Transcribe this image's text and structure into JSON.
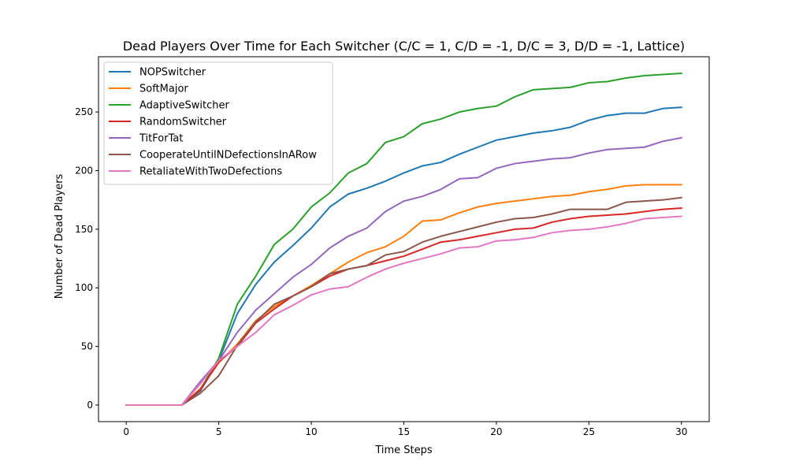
{
  "chart_data": {
    "type": "line",
    "title": "Dead Players Over Time for Each Switcher (C/C = 1, C/D = -1, D/C = 3, D/D = -1, Lattice)",
    "xlabel": "Time Steps",
    "ylabel": "Number of Dead Players",
    "xlim": [
      -1.5,
      31.5
    ],
    "ylim": [
      -14.15,
      297.15
    ],
    "xticks": [
      0,
      5,
      10,
      15,
      20,
      25,
      30
    ],
    "yticks": [
      0,
      50,
      100,
      150,
      200,
      250
    ],
    "grid": false,
    "legend_position": "upper-left",
    "x": [
      0,
      1,
      2,
      3,
      4,
      5,
      6,
      7,
      8,
      9,
      10,
      11,
      12,
      13,
      14,
      15,
      16,
      17,
      18,
      19,
      20,
      21,
      22,
      23,
      24,
      25,
      26,
      27,
      28,
      29,
      30
    ],
    "series": [
      {
        "name": "NOPSwitcher",
        "color": "#1f77b4",
        "values": [
          0,
          0,
          0,
          0,
          12,
          38,
          78,
          103,
          122,
          136,
          151,
          169,
          180,
          185,
          191,
          198,
          204,
          207,
          214,
          220,
          226,
          229,
          232,
          234,
          237,
          243,
          247,
          249,
          249,
          253,
          254
        ]
      },
      {
        "name": "SoftMajor",
        "color": "#ff7f0e",
        "values": [
          0,
          0,
          0,
          0,
          14,
          36,
          52,
          72,
          84,
          93,
          102,
          112,
          122,
          130,
          135,
          144,
          157,
          158,
          164,
          169,
          172,
          174,
          176,
          178,
          179,
          182,
          184,
          187,
          188,
          188,
          188
        ]
      },
      {
        "name": "AdaptiveSwitcher",
        "color": "#2ca02c",
        "values": [
          0,
          0,
          0,
          0,
          13,
          40,
          86,
          110,
          137,
          150,
          169,
          181,
          198,
          206,
          224,
          229,
          240,
          244,
          250,
          253,
          255,
          263,
          269,
          270,
          271,
          275,
          276,
          279,
          281,
          282,
          283
        ]
      },
      {
        "name": "RandomSwitcher",
        "color": "#d62728",
        "values": [
          0,
          0,
          0,
          0,
          13,
          37,
          50,
          70,
          82,
          93,
          101,
          110,
          116,
          119,
          123,
          127,
          133,
          139,
          141,
          144,
          147,
          150,
          151,
          156,
          159,
          161,
          162,
          163,
          165,
          167,
          168
        ]
      },
      {
        "name": "TitForTat",
        "color": "#9467bd",
        "values": [
          0,
          0,
          0,
          0,
          20,
          38,
          62,
          81,
          95,
          109,
          120,
          134,
          144,
          151,
          165,
          174,
          178,
          184,
          193,
          194,
          202,
          206,
          208,
          210,
          211,
          215,
          218,
          219,
          220,
          225,
          228
        ]
      },
      {
        "name": "CooperateUntilNDefectionsInARow",
        "color": "#8c564b",
        "values": [
          0,
          0,
          0,
          0,
          10,
          25,
          51,
          71,
          86,
          93,
          101,
          112,
          116,
          119,
          128,
          131,
          139,
          144,
          148,
          152,
          156,
          159,
          160,
          163,
          167,
          167,
          167,
          173,
          174,
          175,
          177
        ]
      },
      {
        "name": "RetaliateWithTwoDefections",
        "color": "#e377c2",
        "values": [
          0,
          0,
          0,
          0,
          18,
          38,
          50,
          62,
          77,
          85,
          94,
          99,
          101,
          109,
          116,
          121,
          125,
          129,
          134,
          135,
          140,
          141,
          143,
          147,
          149,
          150,
          152,
          155,
          159,
          160,
          161
        ]
      }
    ]
  }
}
